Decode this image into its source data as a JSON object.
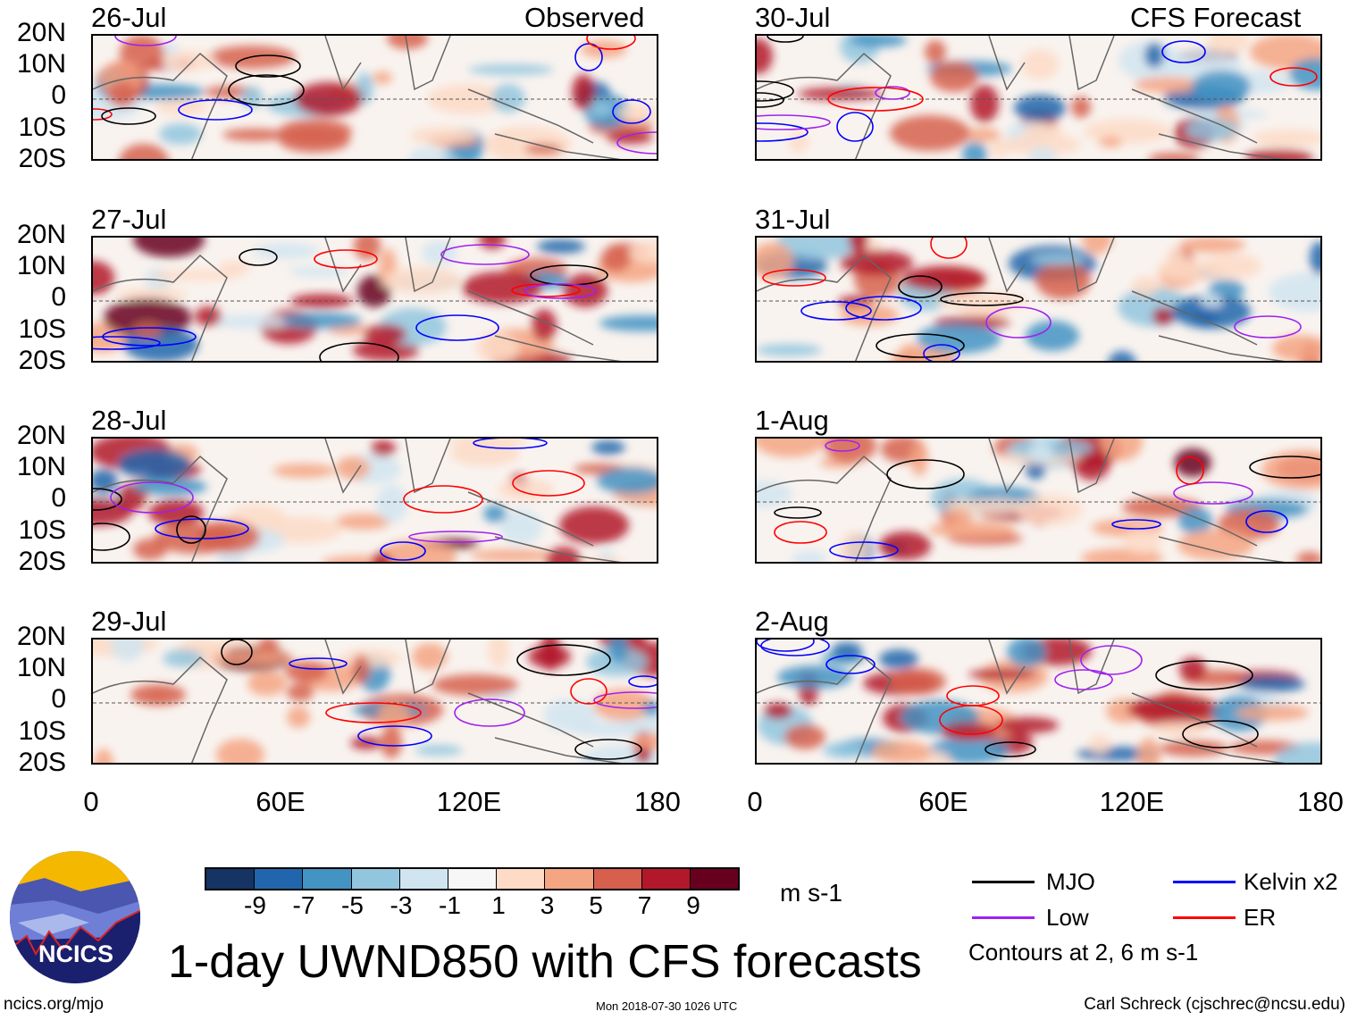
{
  "left_column_label": "Observed",
  "right_column_label": "CFS Forecast",
  "panels_left": [
    {
      "date": "26-Jul"
    },
    {
      "date": "27-Jul"
    },
    {
      "date": "28-Jul"
    },
    {
      "date": "29-Jul"
    }
  ],
  "panels_right": [
    {
      "date": "30-Jul"
    },
    {
      "date": "31-Jul"
    },
    {
      "date": "1-Aug"
    },
    {
      "date": "2-Aug"
    }
  ],
  "y_ticks": [
    "20N",
    "10N",
    "0",
    "10S",
    "20S"
  ],
  "x_ticks": [
    "0",
    "60E",
    "120E",
    "180"
  ],
  "colorbar": {
    "colors": [
      "#163463",
      "#2166ac",
      "#4393c3",
      "#92c5de",
      "#d1e5f0",
      "#f7f7f7",
      "#fddbc7",
      "#f4a582",
      "#d6604d",
      "#b2182b",
      "#67001f"
    ],
    "labels": [
      "-9",
      "-7",
      "-5",
      "-3",
      "-1",
      "1",
      "3",
      "5",
      "7",
      "9"
    ],
    "units": "m s-1"
  },
  "legend": [
    {
      "label": "MJO",
      "color": "#000000"
    },
    {
      "label": "Kelvin x2",
      "color": "#0000ff"
    },
    {
      "label": "Low",
      "color": "#a020f0"
    },
    {
      "label": "ER",
      "color": "#ff0000"
    }
  ],
  "contour_note": "Contours at 2, 6 m s-1",
  "title": "1-day UWND850 with CFS forecasts",
  "logo_text": "NCICS",
  "footer": {
    "url": "ncics.org/mjo",
    "timestamp": "Mon 2018-07-30 1026 UTC",
    "author": "Carl Schreck (cjschrec@ncsu.edu)"
  }
}
